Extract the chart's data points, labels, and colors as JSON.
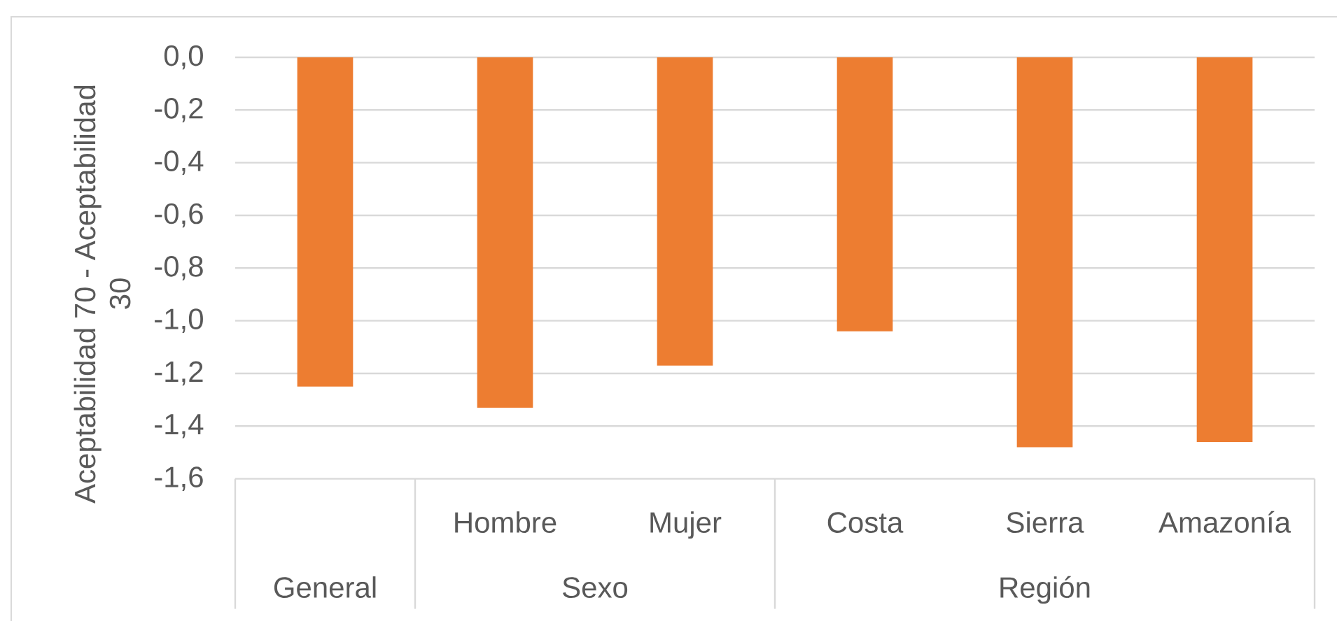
{
  "chart_data": {
    "type": "bar",
    "ylabel": "Aceptabilidad 70 - Aceptabilidad 30",
    "categories": [
      null,
      "Hombre",
      "Mujer",
      "Costa",
      "Sierra",
      "Amazonía"
    ],
    "values": [
      -1.25,
      -1.33,
      -1.17,
      -1.04,
      -1.48,
      -1.46
    ],
    "color": "#ed7d31",
    "ylim": [
      -1.6,
      0
    ],
    "yticks": [
      {
        "value": 0,
        "label": "0,0"
      },
      {
        "value": -0.2,
        "label": "-0,2"
      },
      {
        "value": -0.4,
        "label": "-0,4"
      },
      {
        "value": -0.6,
        "label": "-0,6"
      },
      {
        "value": -0.8,
        "label": "-0,8"
      },
      {
        "value": -1.0,
        "label": "-1,0"
      },
      {
        "value": -1.2,
        "label": "-1,2"
      },
      {
        "value": -1.4,
        "label": "-1,4"
      },
      {
        "value": -1.6,
        "label": "-1,6"
      }
    ],
    "grid": "y",
    "annotations": [
      "General",
      "Sexo",
      "Región"
    ]
  }
}
